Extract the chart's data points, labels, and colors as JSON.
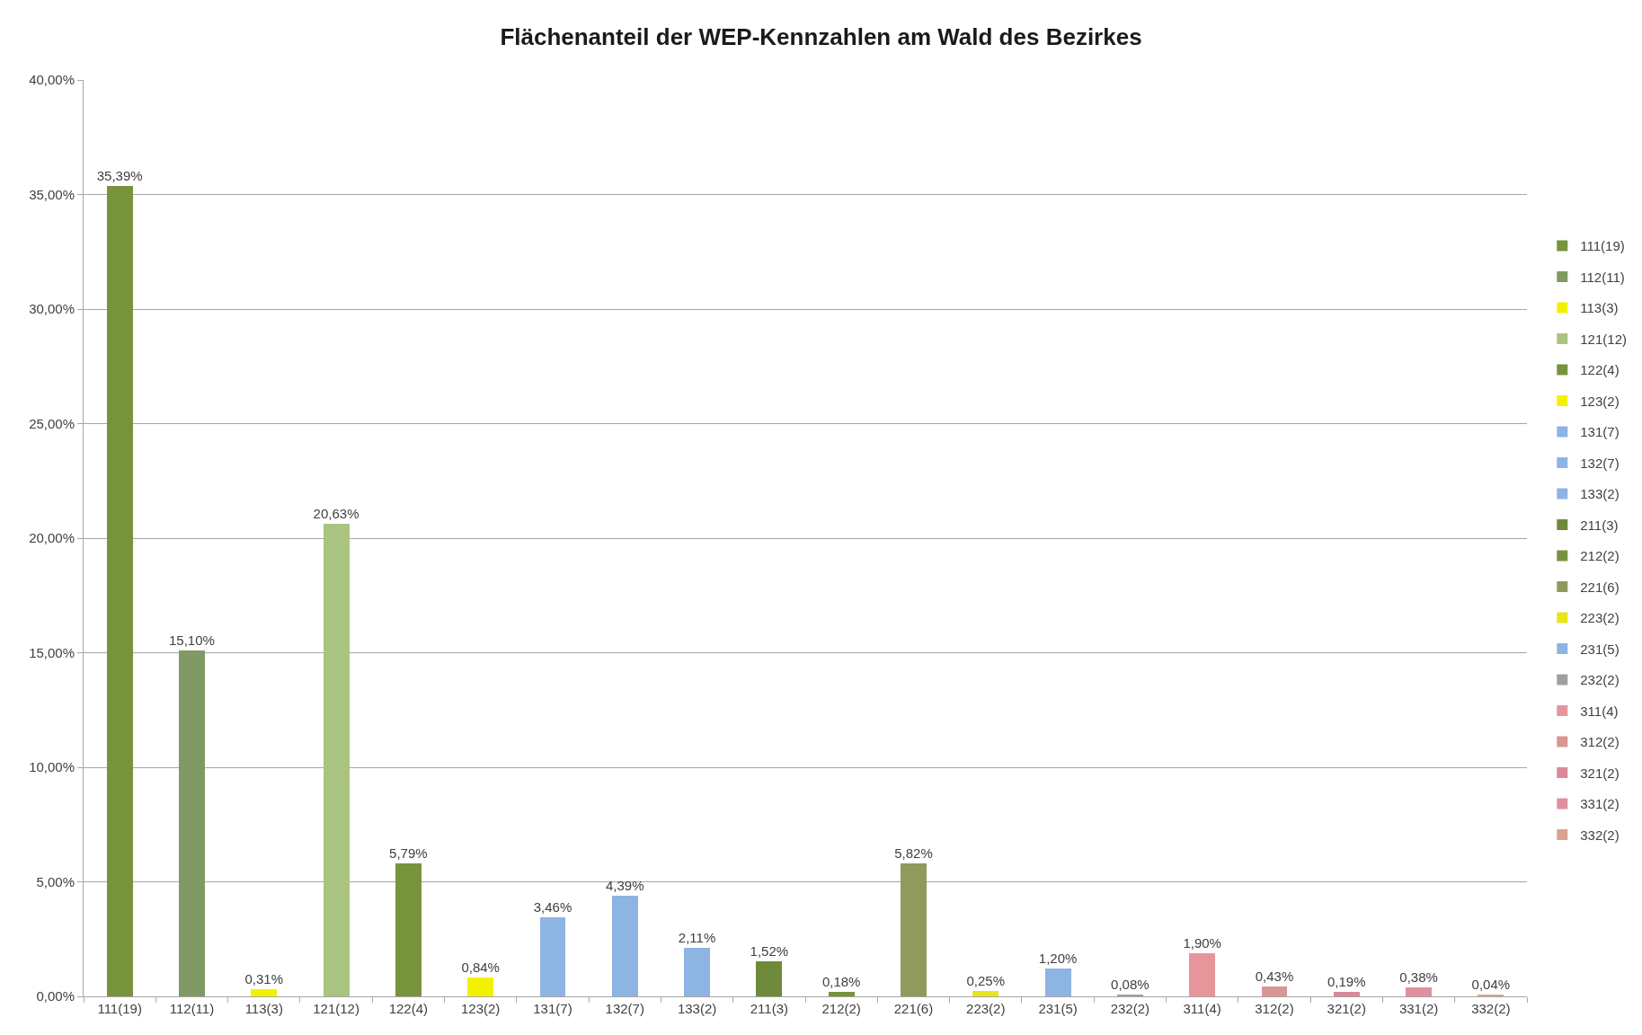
{
  "chart_data": {
    "type": "bar",
    "title": "Flächenanteil der WEP-Kennzahlen am Wald des Bezirkes",
    "categories": [
      "111(19)",
      "112(11)",
      "113(3)",
      "121(12)",
      "122(4)",
      "123(2)",
      "131(7)",
      "132(7)",
      "133(2)",
      "211(3)",
      "212(2)",
      "221(6)",
      "223(2)",
      "231(5)",
      "232(2)",
      "311(4)",
      "312(2)",
      "321(2)",
      "331(2)",
      "332(2)"
    ],
    "stacked": true,
    "series": [
      {
        "name": "111(19)",
        "color": "#77933c",
        "values": [
          35.39,
          null,
          null,
          null,
          null,
          null,
          null,
          null,
          null,
          null,
          null,
          null,
          null,
          null,
          null,
          null,
          null,
          null,
          null,
          null
        ],
        "value_labels": [
          "35,39%",
          null,
          null,
          null,
          null,
          null,
          null,
          null,
          null,
          null,
          null,
          null,
          null,
          null,
          null,
          null,
          null,
          null,
          null,
          null
        ]
      },
      {
        "name": "112(11)",
        "color": "#7f9a65",
        "values": [
          null,
          15.1,
          null,
          null,
          null,
          null,
          null,
          null,
          null,
          null,
          null,
          null,
          null,
          null,
          null,
          null,
          null,
          null,
          null,
          null
        ],
        "value_labels": [
          null,
          "15,10%",
          null,
          null,
          null,
          null,
          null,
          null,
          null,
          null,
          null,
          null,
          null,
          null,
          null,
          null,
          null,
          null,
          null,
          null
        ]
      },
      {
        "name": "113(3)",
        "color": "#f2f200",
        "values": [
          null,
          null,
          0.31,
          null,
          null,
          null,
          null,
          null,
          null,
          null,
          null,
          null,
          null,
          null,
          null,
          null,
          null,
          null,
          null,
          null
        ],
        "value_labels": [
          null,
          null,
          "0,31%",
          null,
          null,
          null,
          null,
          null,
          null,
          null,
          null,
          null,
          null,
          null,
          null,
          null,
          null,
          null,
          null,
          null
        ]
      },
      {
        "name": "121(12)",
        "color": "#a9c47f",
        "values": [
          null,
          null,
          null,
          20.63,
          null,
          null,
          null,
          null,
          null,
          null,
          null,
          null,
          null,
          null,
          null,
          null,
          null,
          null,
          null,
          null
        ],
        "value_labels": [
          null,
          null,
          null,
          "20,63%",
          null,
          null,
          null,
          null,
          null,
          null,
          null,
          null,
          null,
          null,
          null,
          null,
          null,
          null,
          null,
          null
        ]
      },
      {
        "name": "122(4)",
        "color": "#77933c",
        "values": [
          null,
          null,
          null,
          null,
          5.79,
          null,
          null,
          null,
          null,
          null,
          null,
          null,
          null,
          null,
          null,
          null,
          null,
          null,
          null,
          null
        ],
        "value_labels": [
          null,
          null,
          null,
          null,
          "5,79%",
          null,
          null,
          null,
          null,
          null,
          null,
          null,
          null,
          null,
          null,
          null,
          null,
          null,
          null,
          null
        ]
      },
      {
        "name": "123(2)",
        "color": "#f2f200",
        "values": [
          null,
          null,
          null,
          null,
          null,
          0.84,
          null,
          null,
          null,
          null,
          null,
          null,
          null,
          null,
          null,
          null,
          null,
          null,
          null,
          null
        ],
        "value_labels": [
          null,
          null,
          null,
          null,
          null,
          "0,84%",
          null,
          null,
          null,
          null,
          null,
          null,
          null,
          null,
          null,
          null,
          null,
          null,
          null,
          null
        ]
      },
      {
        "name": "131(7)",
        "color": "#8eb4e3",
        "values": [
          null,
          null,
          null,
          null,
          null,
          null,
          3.46,
          null,
          null,
          null,
          null,
          null,
          null,
          null,
          null,
          null,
          null,
          null,
          null,
          null
        ],
        "value_labels": [
          null,
          null,
          null,
          null,
          null,
          null,
          "3,46%",
          null,
          null,
          null,
          null,
          null,
          null,
          null,
          null,
          null,
          null,
          null,
          null,
          null
        ]
      },
      {
        "name": "132(7)",
        "color": "#8eb4e3",
        "values": [
          null,
          null,
          null,
          null,
          null,
          null,
          null,
          4.39,
          null,
          null,
          null,
          null,
          null,
          null,
          null,
          null,
          null,
          null,
          null,
          null
        ],
        "value_labels": [
          null,
          null,
          null,
          null,
          null,
          null,
          null,
          "4,39%",
          null,
          null,
          null,
          null,
          null,
          null,
          null,
          null,
          null,
          null,
          null,
          null
        ]
      },
      {
        "name": "133(2)",
        "color": "#8eb4e3",
        "values": [
          null,
          null,
          null,
          null,
          null,
          null,
          null,
          null,
          2.11,
          null,
          null,
          null,
          null,
          null,
          null,
          null,
          null,
          null,
          null,
          null
        ],
        "value_labels": [
          null,
          null,
          null,
          null,
          null,
          null,
          null,
          null,
          "2,11%",
          null,
          null,
          null,
          null,
          null,
          null,
          null,
          null,
          null,
          null,
          null
        ]
      },
      {
        "name": "211(3)",
        "color": "#6f8a3a",
        "values": [
          null,
          null,
          null,
          null,
          null,
          null,
          null,
          null,
          null,
          1.52,
          null,
          null,
          null,
          null,
          null,
          null,
          null,
          null,
          null,
          null
        ],
        "value_labels": [
          null,
          null,
          null,
          null,
          null,
          null,
          null,
          null,
          null,
          "1,52%",
          null,
          null,
          null,
          null,
          null,
          null,
          null,
          null,
          null,
          null
        ]
      },
      {
        "name": "212(2)",
        "color": "#77933c",
        "values": [
          null,
          null,
          null,
          null,
          null,
          null,
          null,
          null,
          null,
          null,
          0.18,
          null,
          null,
          null,
          null,
          null,
          null,
          null,
          null,
          null
        ],
        "value_labels": [
          null,
          null,
          null,
          null,
          null,
          null,
          null,
          null,
          null,
          null,
          "0,18%",
          null,
          null,
          null,
          null,
          null,
          null,
          null,
          null,
          null
        ]
      },
      {
        "name": "221(6)",
        "color": "#8f9a5c",
        "values": [
          null,
          null,
          null,
          null,
          null,
          null,
          null,
          null,
          null,
          null,
          null,
          5.82,
          null,
          null,
          null,
          null,
          null,
          null,
          null,
          null
        ],
        "value_labels": [
          null,
          null,
          null,
          null,
          null,
          null,
          null,
          null,
          null,
          null,
          null,
          "5,82%",
          null,
          null,
          null,
          null,
          null,
          null,
          null,
          null
        ]
      },
      {
        "name": "223(2)",
        "color": "#e6e61a",
        "values": [
          null,
          null,
          null,
          null,
          null,
          null,
          null,
          null,
          null,
          null,
          null,
          null,
          0.25,
          null,
          null,
          null,
          null,
          null,
          null,
          null
        ],
        "value_labels": [
          null,
          null,
          null,
          null,
          null,
          null,
          null,
          null,
          null,
          null,
          null,
          null,
          "0,25%",
          null,
          null,
          null,
          null,
          null,
          null,
          null
        ]
      },
      {
        "name": "231(5)",
        "color": "#8eb4e3",
        "values": [
          null,
          null,
          null,
          null,
          null,
          null,
          null,
          null,
          null,
          null,
          null,
          null,
          null,
          1.2,
          null,
          null,
          null,
          null,
          null,
          null
        ],
        "value_labels": [
          null,
          null,
          null,
          null,
          null,
          null,
          null,
          null,
          null,
          null,
          null,
          null,
          null,
          "1,20%",
          null,
          null,
          null,
          null,
          null,
          null
        ]
      },
      {
        "name": "232(2)",
        "color": "#a0a0a0",
        "values": [
          null,
          null,
          null,
          null,
          null,
          null,
          null,
          null,
          null,
          null,
          null,
          null,
          null,
          null,
          0.08,
          null,
          null,
          null,
          null,
          null
        ],
        "value_labels": [
          null,
          null,
          null,
          null,
          null,
          null,
          null,
          null,
          null,
          null,
          null,
          null,
          null,
          null,
          "0,08%",
          null,
          null,
          null,
          null,
          null
        ]
      },
      {
        "name": "311(4)",
        "color": "#e6959b",
        "values": [
          null,
          null,
          null,
          null,
          null,
          null,
          null,
          null,
          null,
          null,
          null,
          null,
          null,
          null,
          null,
          1.9,
          null,
          null,
          null,
          null
        ],
        "value_labels": [
          null,
          null,
          null,
          null,
          null,
          null,
          null,
          null,
          null,
          null,
          null,
          null,
          null,
          null,
          null,
          "1,90%",
          null,
          null,
          null,
          null
        ]
      },
      {
        "name": "312(2)",
        "color": "#d99694",
        "values": [
          null,
          null,
          null,
          null,
          null,
          null,
          null,
          null,
          null,
          null,
          null,
          null,
          null,
          null,
          null,
          null,
          0.43,
          null,
          null,
          null
        ],
        "value_labels": [
          null,
          null,
          null,
          null,
          null,
          null,
          null,
          null,
          null,
          null,
          null,
          null,
          null,
          null,
          null,
          null,
          "0,43%",
          null,
          null,
          null
        ]
      },
      {
        "name": "321(2)",
        "color": "#d9899a",
        "values": [
          null,
          null,
          null,
          null,
          null,
          null,
          null,
          null,
          null,
          null,
          null,
          null,
          null,
          null,
          null,
          null,
          null,
          0.19,
          null,
          null
        ],
        "value_labels": [
          null,
          null,
          null,
          null,
          null,
          null,
          null,
          null,
          null,
          null,
          null,
          null,
          null,
          null,
          null,
          null,
          null,
          "0,19%",
          null,
          null
        ]
      },
      {
        "name": "331(2)",
        "color": "#e0909e",
        "values": [
          null,
          null,
          null,
          null,
          null,
          null,
          null,
          null,
          null,
          null,
          null,
          null,
          null,
          null,
          null,
          null,
          null,
          null,
          0.38,
          null
        ],
        "value_labels": [
          null,
          null,
          null,
          null,
          null,
          null,
          null,
          null,
          null,
          null,
          null,
          null,
          null,
          null,
          null,
          null,
          null,
          null,
          "0,38%",
          null
        ]
      },
      {
        "name": "332(2)",
        "color": "#d9a38f",
        "values": [
          null,
          null,
          null,
          null,
          null,
          null,
          null,
          null,
          null,
          null,
          null,
          null,
          null,
          null,
          null,
          null,
          null,
          null,
          null,
          0.04
        ],
        "value_labels": [
          null,
          null,
          null,
          null,
          null,
          null,
          null,
          null,
          null,
          null,
          null,
          null,
          null,
          null,
          null,
          null,
          null,
          null,
          null,
          "0,04%"
        ]
      }
    ],
    "ylim": [
      0,
      40
    ],
    "yticks": [
      {
        "value": 0,
        "label": "0,00%"
      },
      {
        "value": 5,
        "label": "5,00%"
      },
      {
        "value": 10,
        "label": "10,00%"
      },
      {
        "value": 15,
        "label": "15,00%"
      },
      {
        "value": 20,
        "label": "20,00%"
      },
      {
        "value": 25,
        "label": "25,00%"
      },
      {
        "value": 30,
        "label": "30,00%"
      },
      {
        "value": 35,
        "label": "35,00%"
      },
      {
        "value": 40,
        "label": "40,00%"
      }
    ],
    "grid": "y",
    "legend": "right"
  }
}
